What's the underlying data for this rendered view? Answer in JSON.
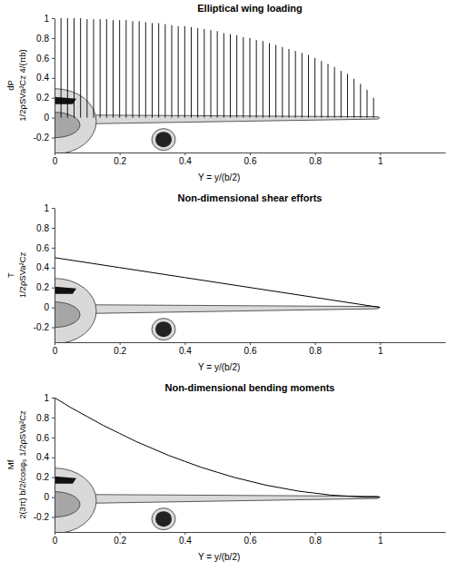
{
  "chart_data": [
    {
      "type": "stem",
      "title": "Elliptical wing loading",
      "xlabel": "Y = y/(b/2)",
      "ylabel": [
        "dP",
        "1/2ρSVa²Cz 4/(πb)"
      ],
      "x": [
        0.02,
        0.04,
        0.06,
        0.08,
        0.1,
        0.12,
        0.14,
        0.16,
        0.18,
        0.2,
        0.22,
        0.24,
        0.26,
        0.28,
        0.3,
        0.32,
        0.34,
        0.36,
        0.38,
        0.4,
        0.42,
        0.44,
        0.46,
        0.48,
        0.5,
        0.52,
        0.54,
        0.56,
        0.58,
        0.6,
        0.62,
        0.64,
        0.66,
        0.68,
        0.7,
        0.72,
        0.74,
        0.76,
        0.78,
        0.8,
        0.82,
        0.84,
        0.86,
        0.88,
        0.9,
        0.92,
        0.94,
        0.96,
        0.98
      ],
      "values": [
        1,
        1,
        1,
        1,
        0.99,
        0.99,
        0.99,
        0.99,
        0.98,
        0.98,
        0.98,
        0.97,
        0.97,
        0.96,
        0.95,
        0.95,
        0.94,
        0.93,
        0.92,
        0.92,
        0.91,
        0.9,
        0.89,
        0.88,
        0.87,
        0.85,
        0.84,
        0.83,
        0.81,
        0.8,
        0.78,
        0.77,
        0.75,
        0.73,
        0.71,
        0.69,
        0.67,
        0.65,
        0.63,
        0.6,
        0.57,
        0.54,
        0.51,
        0.47,
        0.44,
        0.39,
        0.34,
        0.28,
        0.2
      ],
      "color": "#000000",
      "xlim": [
        0,
        1.2
      ],
      "ylim": [
        -0.35,
        1
      ],
      "xticks": [
        0,
        0.2,
        0.4,
        0.6,
        0.8,
        1
      ],
      "yticks": [
        -0.2,
        0,
        0.2,
        0.4,
        0.6,
        0.8,
        1
      ]
    },
    {
      "type": "line",
      "title": "Non-dimensional shear efforts",
      "xlabel": "Y = y/(b/2)",
      "ylabel": [
        "T",
        "1/2ρSVa²Cz"
      ],
      "x": [
        0,
        0.2,
        0.4,
        0.6,
        0.8,
        1
      ],
      "values": [
        0.5,
        0.4,
        0.3,
        0.2,
        0.1,
        0
      ],
      "color": "#000000",
      "xlim": [
        0,
        1.2
      ],
      "ylim": [
        -0.35,
        1
      ],
      "xticks": [
        0,
        0.2,
        0.4,
        0.6,
        0.8,
        1
      ],
      "yticks": [
        -0.2,
        0,
        0.2,
        0.4,
        0.6,
        0.8,
        1
      ]
    },
    {
      "type": "line",
      "title": "Non-dimensional bending moments",
      "xlabel": "Y = y/(b/2)",
      "ylabel": [
        "Mf",
        "2(3π) b/2/cosφₑ 1/2ρSVa²Cz"
      ],
      "x": [
        0,
        0.05,
        0.1,
        0.15,
        0.2,
        0.25,
        0.3,
        0.35,
        0.4,
        0.45,
        0.5,
        0.55,
        0.6,
        0.65,
        0.7,
        0.75,
        0.8,
        0.85,
        0.9,
        0.95,
        1
      ],
      "values": [
        1,
        0.9,
        0.81,
        0.72,
        0.64,
        0.56,
        0.49,
        0.42,
        0.36,
        0.3,
        0.25,
        0.2,
        0.16,
        0.12,
        0.09,
        0.06,
        0.04,
        0.02,
        0.01,
        0,
        0
      ],
      "color": "#000000",
      "xlim": [
        0,
        1.2
      ],
      "ylim": [
        -0.35,
        1
      ],
      "xticks": [
        0,
        0.2,
        0.4,
        0.6,
        0.8,
        1
      ],
      "yticks": [
        -0.2,
        0,
        0.2,
        0.4,
        0.6,
        0.8,
        1
      ]
    }
  ]
}
